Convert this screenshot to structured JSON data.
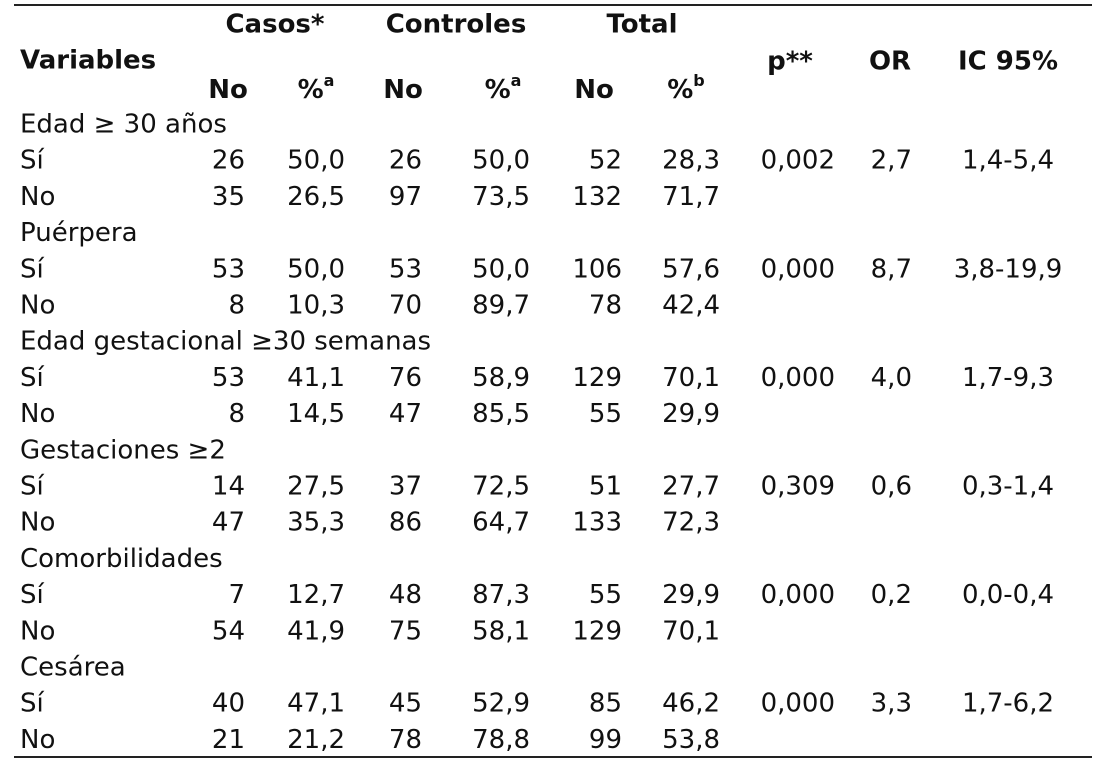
{
  "table": {
    "header": {
      "variables": "Variables",
      "groups": [
        "Casos*",
        "Controles",
        "Total"
      ],
      "p": "p**",
      "or": "OR",
      "ic": "IC 95%",
      "sub": [
        {
          "text": "No"
        },
        {
          "text": "%",
          "sup": "a"
        },
        {
          "text": "No"
        },
        {
          "text": "%",
          "sup": "a"
        },
        {
          "text": "No"
        },
        {
          "text": "%",
          "sup": "b"
        }
      ]
    },
    "sections": [
      {
        "label": "Edad ≥ 30 años",
        "rows": [
          {
            "label": "Sí",
            "cells": [
              "26",
              "50,0",
              "26",
              "50,0",
              "52",
              "28,3",
              "0,002",
              "2,7",
              "1,4-5,4"
            ]
          },
          {
            "label": "No",
            "cells": [
              "35",
              "26,5",
              "97",
              "73,5",
              "132",
              "71,7"
            ]
          }
        ]
      },
      {
        "label": "Puérpera",
        "rows": [
          {
            "label": "Sí",
            "cells": [
              "53",
              "50,0",
              "53",
              "50,0",
              "106",
              "57,6",
              "0,000",
              "8,7",
              "3,8-19,9"
            ]
          },
          {
            "label": "No",
            "cells": [
              "8",
              "10,3",
              "70",
              "89,7",
              "78",
              "42,4"
            ]
          }
        ]
      },
      {
        "label": "Edad gestacional ≥30 semanas",
        "rows": [
          {
            "label": "Sí",
            "cells": [
              "53",
              "41,1",
              "76",
              "58,9",
              "129",
              "70,1",
              "0,000",
              "4,0",
              "1,7-9,3"
            ]
          },
          {
            "label": "No",
            "cells": [
              "8",
              "14,5",
              "47",
              "85,5",
              "55",
              "29,9"
            ]
          }
        ]
      },
      {
        "label": "Gestaciones ≥2",
        "rows": [
          {
            "label": "Sí",
            "cells": [
              "14",
              "27,5",
              "37",
              "72,5",
              "51",
              "27,7",
              "0,309",
              "0,6",
              "0,3-1,4"
            ]
          },
          {
            "label": "No",
            "cells": [
              "47",
              "35,3",
              "86",
              "64,7",
              "133",
              "72,3"
            ]
          }
        ]
      },
      {
        "label": "Comorbilidades",
        "rows": [
          {
            "label": "Sí",
            "cells": [
              "7",
              "12,7",
              "48",
              "87,3",
              "55",
              "29,9",
              "0,000",
              "0,2",
              "0,0-0,4"
            ]
          },
          {
            "label": "No",
            "cells": [
              "54",
              "41,9",
              "75",
              "58,1",
              "129",
              "70,1"
            ]
          }
        ]
      },
      {
        "label": "Cesárea",
        "rows": [
          {
            "label": "Sí",
            "cells": [
              "40",
              "47,1",
              "45",
              "52,9",
              "85",
              "46,2",
              "0,000",
              "3,3",
              "1,7-6,2"
            ]
          },
          {
            "label": "No",
            "cells": [
              "21",
              "21,2",
              "78",
              "78,8",
              "99",
              "53,8"
            ]
          }
        ]
      }
    ]
  }
}
